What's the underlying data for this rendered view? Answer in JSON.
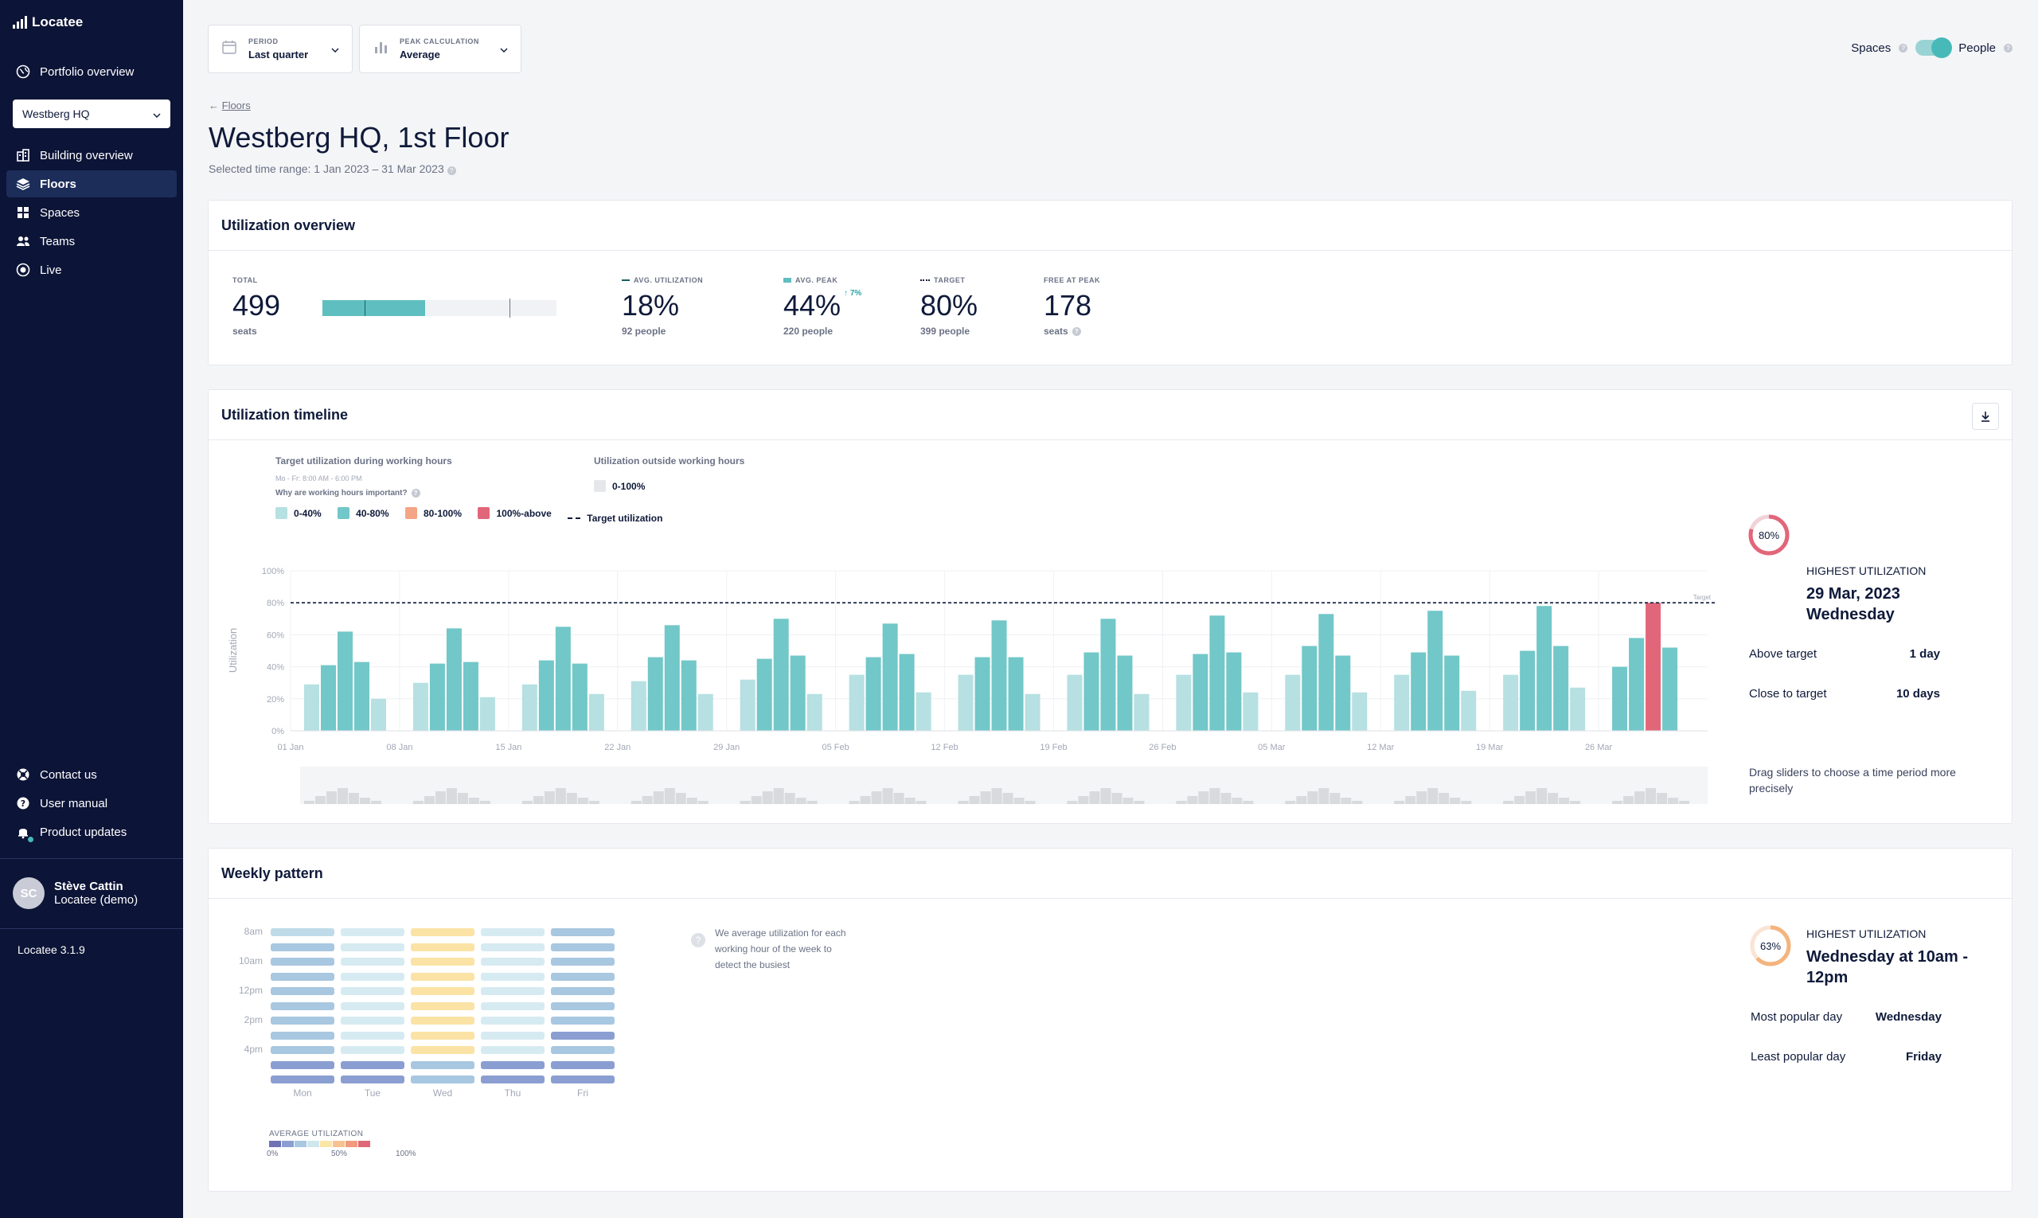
{
  "app": {
    "name": "Locatee",
    "version": "Locatee 3.1.9"
  },
  "sidebar": {
    "portfolio": "Portfolio overview",
    "building": "Westberg HQ",
    "items": [
      {
        "label": "Building overview",
        "icon": "building-icon"
      },
      {
        "label": "Floors",
        "icon": "layers-icon",
        "active": true
      },
      {
        "label": "Spaces",
        "icon": "grid-icon"
      },
      {
        "label": "Teams",
        "icon": "people-icon"
      },
      {
        "label": "Live",
        "icon": "live-icon"
      }
    ],
    "bottom": [
      {
        "label": "Contact us",
        "icon": "support-icon"
      },
      {
        "label": "User manual",
        "icon": "help-icon"
      },
      {
        "label": "Product updates",
        "icon": "bell-icon"
      }
    ],
    "user": {
      "initials": "SC",
      "name": "Stève Cattin",
      "org": "Locatee (demo)"
    }
  },
  "filters": {
    "period_label": "PERIOD",
    "period_value": "Last quarter",
    "peak_label": "PEAK CALCULATION",
    "peak_value": "Average"
  },
  "toggle": {
    "left": "Spaces",
    "right": "People"
  },
  "breadcrumb": "Floors",
  "title": "Westberg HQ, 1st Floor",
  "subtitle": "Selected time range: 1 Jan 2023 – 31 Mar 2023",
  "overview": {
    "heading": "Utilization overview",
    "total_label": "TOTAL",
    "total_value": "499",
    "total_sub": "seats",
    "avg_label": "AVG. UTILIZATION",
    "avg_value": "18%",
    "avg_sub": "92 people",
    "peak_label": "AVG. PEAK",
    "peak_value": "44%",
    "peak_delta": "↑ 7%",
    "peak_sub": "220 people",
    "target_label": "TARGET",
    "target_value": "80%",
    "target_sub": "399 people",
    "free_label": "FREE AT PEAK",
    "free_value": "178",
    "free_sub": "seats",
    "bar_avg": 0.18,
    "bar_peak": 0.44,
    "bar_target": 0.8
  },
  "timeline": {
    "heading": "Utilization timeline",
    "legend_title": "Target utilization during working hours",
    "legend_hours": "Mo - Fr: 8:00 AM - 6:00 PM",
    "legend_why": "Why are working hours important?",
    "outside_title": "Utilization outside working hours",
    "outside_item": "0-100%",
    "legend_items": [
      {
        "label": "0-40%",
        "color": "#b6e0e2"
      },
      {
        "label": "40-80%",
        "color": "#72c7c8"
      },
      {
        "label": "80-100%",
        "color": "#f4a585"
      },
      {
        "label": "100%-above",
        "color": "#e2667a"
      }
    ],
    "target_legend": "Target utilization",
    "side": {
      "ring": "80%",
      "title": "HIGHEST UTILIZATION",
      "date": "29 Mar, 2023",
      "day": "Wednesday",
      "above_label": "Above target",
      "above_value": "1 day",
      "close_label": "Close to target",
      "close_value": "10 days",
      "hint": "Drag sliders to choose a time period more precisely"
    }
  },
  "chart_data": {
    "type": "bar",
    "ylabel": "Utilization",
    "yticks": [
      "100%",
      "80%",
      "60%",
      "40%",
      "20%",
      "0%"
    ],
    "ylim": [
      0,
      100
    ],
    "target": 80,
    "target_label": "Target",
    "week_labels": [
      "01 Jan",
      "08 Jan",
      "15 Jan",
      "22 Jan",
      "29 Jan",
      "05 Feb",
      "12 Feb",
      "19 Feb",
      "26 Feb",
      "05 Mar",
      "12 Mar",
      "19 Mar",
      "26 Mar"
    ],
    "weeks": [
      [
        29,
        41,
        62,
        43,
        20
      ],
      [
        30,
        42,
        64,
        43,
        21
      ],
      [
        29,
        44,
        65,
        42,
        23
      ],
      [
        31,
        46,
        66,
        44,
        23
      ],
      [
        32,
        45,
        70,
        47,
        23
      ],
      [
        35,
        46,
        67,
        48,
        24
      ],
      [
        35,
        46,
        69,
        46,
        23
      ],
      [
        35,
        49,
        70,
        47,
        23
      ],
      [
        35,
        48,
        72,
        49,
        24
      ],
      [
        35,
        53,
        73,
        47,
        24
      ],
      [
        35,
        49,
        75,
        47,
        25
      ],
      [
        35,
        50,
        78,
        53,
        27
      ],
      [
        40,
        58,
        80,
        52,
        null
      ]
    ]
  },
  "weekly": {
    "heading": "Weekly pattern",
    "hours": [
      "8am",
      "10am",
      "12pm",
      "2pm",
      "4pm"
    ],
    "days": [
      "Mon",
      "Tue",
      "Wed",
      "Thu",
      "Fri"
    ],
    "info": "We average utilization for each working hour of the week to detect the busiest",
    "scale_title": "AVERAGE UTILIZATION",
    "scale_ticks": [
      "0%",
      "50%",
      "100%"
    ],
    "scale_colors": [
      "#6f73b4",
      "#8a9ed1",
      "#a8c7e0",
      "#cfe6ee",
      "#fbe6a6",
      "#f7c290",
      "#f29a7e",
      "#e06775"
    ],
    "matrix": [
      [
        3,
        4,
        5,
        4,
        2
      ],
      [
        2,
        4,
        6,
        4,
        2
      ],
      [
        2,
        4,
        6,
        4,
        2
      ],
      [
        2,
        4,
        6,
        4,
        2
      ],
      [
        2,
        4,
        6,
        4,
        2
      ],
      [
        2,
        4,
        6,
        4,
        2
      ],
      [
        2,
        4,
        6,
        4,
        2
      ],
      [
        2,
        4,
        5,
        4,
        1
      ],
      [
        2,
        4,
        6,
        4,
        2
      ],
      [
        1,
        1,
        2,
        1,
        1
      ],
      [
        1,
        1,
        2,
        1,
        1
      ]
    ],
    "side": {
      "ring": "63%",
      "title": "HIGHEST UTILIZATION",
      "big": "Wednesday at 10am - 12pm",
      "most_label": "Most popular day",
      "most_value": "Wednesday",
      "least_label": "Least popular day",
      "least_value": "Friday"
    }
  }
}
